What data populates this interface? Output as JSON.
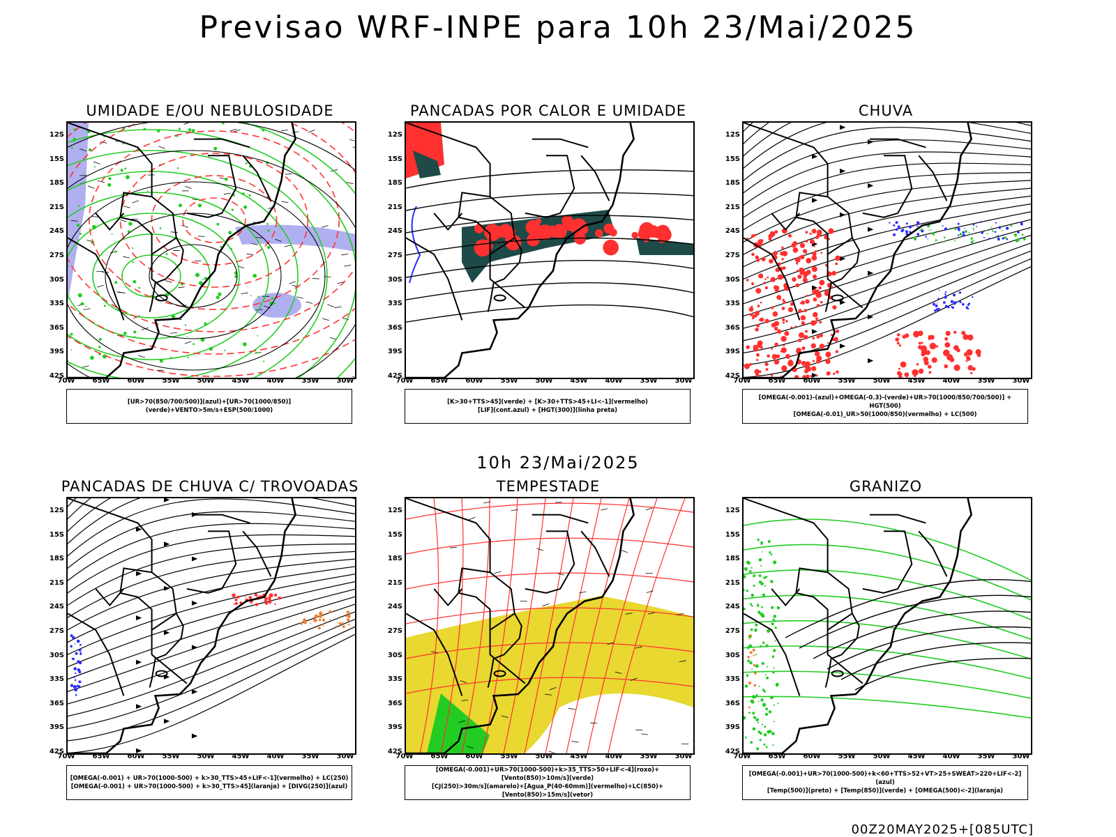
{
  "title": "Previsao WRF-INPE  para 10h 23/Mai/2025",
  "mid_time": "10h 23/Mai/2025",
  "footer_run": "00Z20MAY2025+[085UTC]",
  "lat_labels": [
    "12S",
    "15S",
    "18S",
    "21S",
    "24S",
    "27S",
    "30S",
    "33S",
    "36S",
    "39S",
    "42S"
  ],
  "lon_labels": [
    "70W",
    "65W",
    "60W",
    "55W",
    "50W",
    "45W",
    "40W",
    "35W",
    "30W"
  ],
  "panels": [
    {
      "title": "UMIDADE E/OU NEBULOSIDADE",
      "legend": [
        "[UR>70(850/700/500)](azul)+[UR>70(1000/850)](verde)+VENTO>5m/s+ESP(500/1000)"
      ]
    },
    {
      "title": "PANCADAS POR CALOR E UMIDADE",
      "legend": [
        "[K>30+TTS>45](verde) + [K>30+TTS>45+LI<-1](vermelho)",
        "[LIF](cont.azul) + [HGT(300)](linha preta)"
      ]
    },
    {
      "title": "CHUVA",
      "legend": [
        "[OMEGA(-0.001)-(azul)+OMEGA(-0.3)-(verde)+UR>70(1000/850/700/500)] + HGT(500)",
        "[OMEGA(-0.01)_UR>50(1000/850)(vermelho) + LC(500)"
      ]
    },
    {
      "title": "PANCADAS DE CHUVA C/ TROVOADAS",
      "legend": [
        "[OMEGA(-0.001) + UR>70(1000-500) + k>30_TTS>45+LIF<-1](vermelho) + LC(250)",
        "[OMEGA(-0.001) + UR>70(1000-500) + k>30_TTS>45](laranja) + [DIVG(250)](azul)"
      ]
    },
    {
      "title": "TEMPESTADE",
      "legend": [
        "[OMEGA(-0.001)+UR>70(1000-500)+k>35_TTS>50+LIF<-4](roxo)+[Vento(850)>10m/s](verde)",
        "[CJ(250)>30m/s](amarelo)+[Agua_P(40-60mm)](vermelho)+LC(850)+[Vento(850)>15m/s](vetor)"
      ]
    },
    {
      "title": "GRANIZO",
      "legend": [
        "[OMEGA(-0.001)+UR>70(1000-500)+k<60+TTS>52+VT>25+SWEAT>220+LIF<-2](azul)",
        "[Temp(500)](preto) + [Temp(850)](verde) + [OMEGA(500)<-2](laranja)"
      ]
    }
  ],
  "colors": {
    "green": "#22cc22",
    "red": "#ff3030",
    "blue": "#2a2aff",
    "lavender": "#b0b0f0",
    "darkteal": "#1e4a48",
    "yellow": "#e8d830",
    "orange": "#f08030"
  }
}
